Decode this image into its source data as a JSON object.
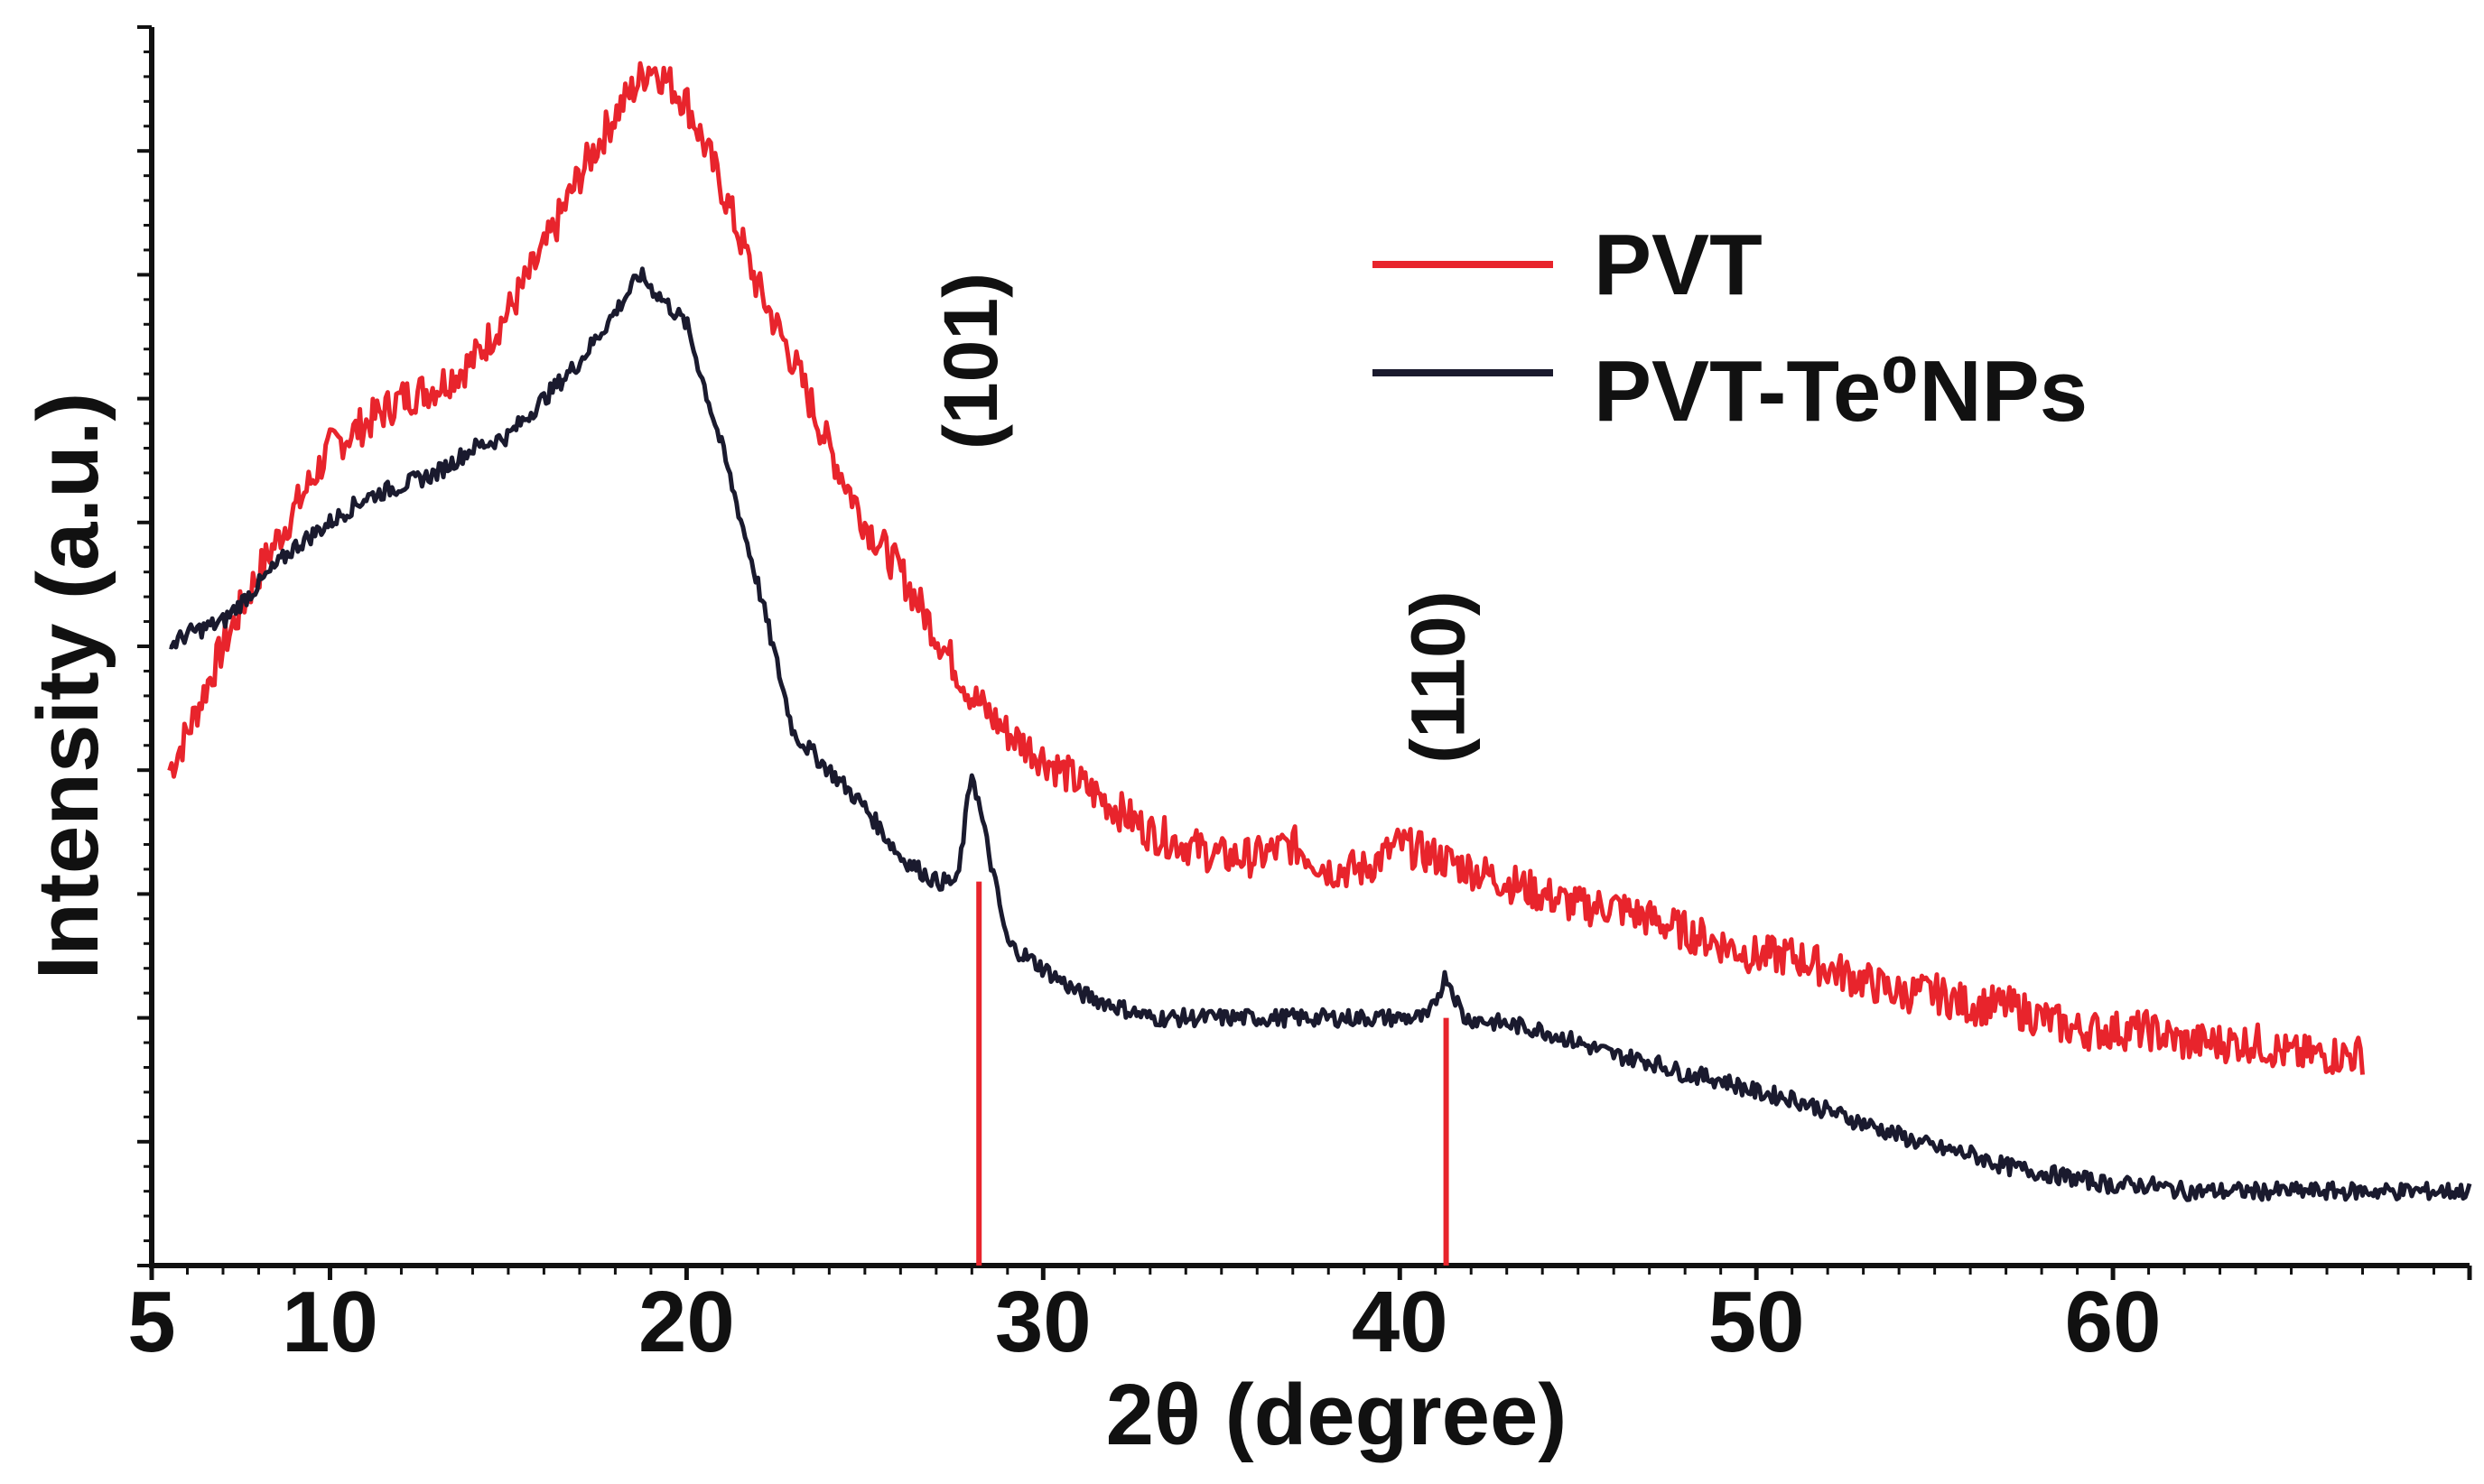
{
  "chart_data": {
    "type": "line",
    "title": "",
    "xlabel": "2θ (degree)",
    "ylabel": "Intensity (a.u.)",
    "xlim": [
      5,
      70
    ],
    "ylim": [
      0,
      100
    ],
    "x_ticks": [
      5,
      10,
      20,
      30,
      40,
      50,
      60
    ],
    "x_tick_labels": [
      "5",
      "10",
      "20",
      "30",
      "40",
      "50",
      "60"
    ],
    "y_tick_labels_shown": false,
    "grid": false,
    "legend_position": "top-right",
    "series": [
      {
        "name": "PVT",
        "color": "#e8242c",
        "x": [
          5.5,
          6,
          7,
          8,
          9,
          10,
          11,
          12,
          13,
          14,
          15,
          16,
          17,
          18,
          19,
          20,
          21,
          22,
          23,
          24,
          25,
          26,
          27,
          28,
          29,
          30,
          31,
          32,
          33,
          34,
          35,
          36,
          37,
          38,
          39,
          40,
          41,
          42,
          43,
          44,
          45,
          46,
          47,
          48,
          49,
          50,
          51,
          52,
          53,
          54,
          55,
          56,
          57,
          58,
          59,
          60,
          61,
          62,
          63,
          64,
          65,
          66,
          67
        ],
        "y": [
          40,
          43,
          50,
          56,
          61,
          66,
          68,
          70,
          71,
          73,
          77,
          82,
          88,
          93,
          97,
          94,
          87,
          79,
          73,
          66,
          60,
          56,
          51,
          46,
          43,
          41,
          39,
          37,
          35,
          34,
          33,
          33,
          34,
          32,
          32,
          34,
          33,
          32,
          31,
          30,
          29,
          29,
          28,
          27,
          26,
          25,
          25,
          24,
          23,
          22,
          22,
          21,
          21,
          20,
          19,
          19,
          19,
          18,
          18,
          18,
          17,
          17,
          17
        ]
      },
      {
        "name": "PVT-Te⁰NPs",
        "color": "#1a1a2e",
        "x": [
          5.5,
          6,
          7,
          8,
          9,
          10,
          11,
          12,
          13,
          14,
          15,
          16,
          17,
          18,
          18.7,
          19,
          20,
          21,
          22,
          23,
          24,
          25,
          26,
          27,
          27.6,
          28,
          28.5,
          29,
          30,
          31,
          32,
          33,
          34,
          35,
          36,
          37,
          38,
          39,
          40,
          40.8,
          41.3,
          41.8,
          43,
          44,
          45,
          46,
          47,
          48,
          49,
          50,
          51,
          52,
          53,
          54,
          55,
          56,
          57,
          58,
          59,
          60,
          61,
          62,
          63,
          64,
          65,
          66,
          67,
          68,
          69,
          70
        ],
        "y": [
          50,
          51,
          52,
          55,
          58,
          60,
          62,
          63,
          64,
          66,
          67,
          70,
          73,
          77,
          80,
          79,
          76,
          66,
          55,
          43,
          40,
          37,
          33,
          31,
          31,
          40,
          33,
          26,
          24,
          22,
          21,
          20,
          20,
          20,
          20,
          20,
          20,
          20,
          20,
          20,
          23.5,
          20,
          19.5,
          19,
          18,
          17,
          16.5,
          15.5,
          15,
          14,
          13.5,
          12.5,
          11.5,
          10.5,
          9.5,
          9,
          8,
          7.5,
          7,
          6.5,
          6.5,
          6,
          6,
          6,
          6,
          6,
          6,
          6,
          6,
          6
        ]
      }
    ],
    "reference_lines": [
      {
        "x": 28.2,
        "y": 31,
        "color": "#e8242c"
      },
      {
        "x": 41.3,
        "y": 20,
        "color": "#e8242c"
      }
    ],
    "annotations": [
      {
        "text": "(101)",
        "x": 28.2
      },
      {
        "text": "(110)",
        "x": 41.3
      }
    ]
  }
}
